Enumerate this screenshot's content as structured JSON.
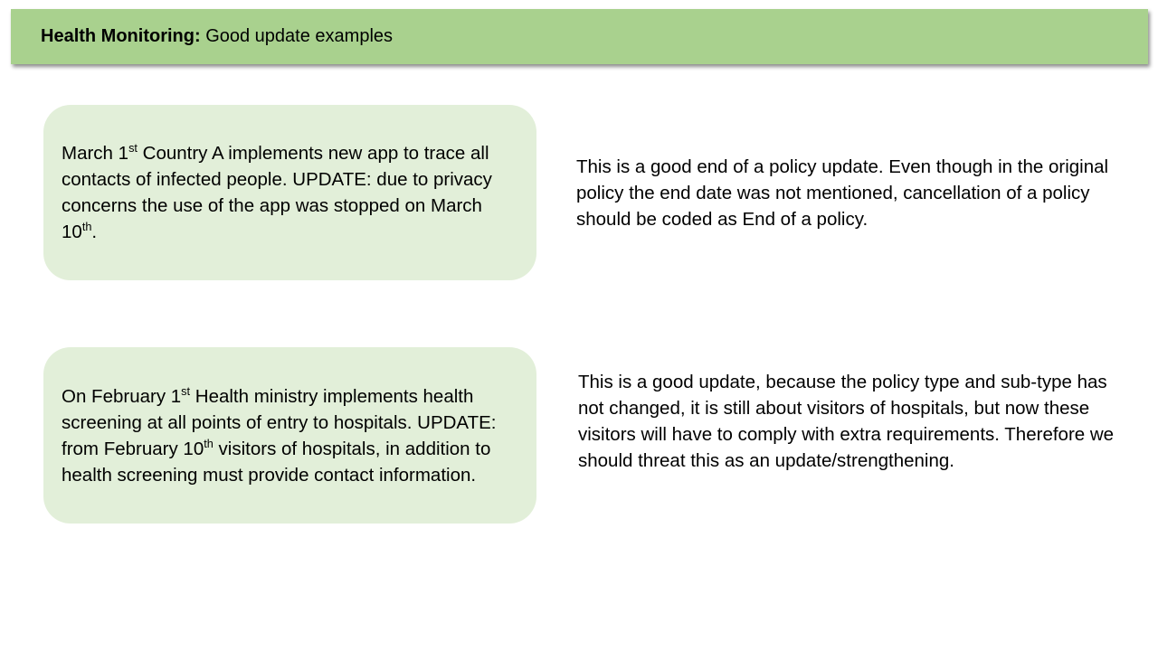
{
  "title": {
    "bold": "Health Monitoring:",
    "rest": " Good update examples"
  },
  "example1": {
    "card": {
      "t1": "March 1",
      "s1": "st",
      "t2": " Country A implements new app to trace all contacts of infected people. UPDATE: due to privacy concerns the use of the app was stopped on March 10",
      "s2": "th",
      "t3": "."
    },
    "note": "This is a good end of a policy update. Even though in the original policy the end date was not mentioned, cancellation of a policy should be coded as End of a policy."
  },
  "example2": {
    "card": {
      "t1": "On February 1",
      "s1": "st",
      "t2": " Health ministry implements health screening at all points of entry to hospitals. UPDATE: from February 10",
      "s2": "th",
      "t3": " visitors of hospitals, in addition to health screening must provide contact information."
    },
    "note": "This is a good update, because the policy type and sub-type has not changed, it is still about visitors of hospitals, but now these visitors will have to comply with extra requirements. Therefore we should threat this as an update/strengthening."
  }
}
